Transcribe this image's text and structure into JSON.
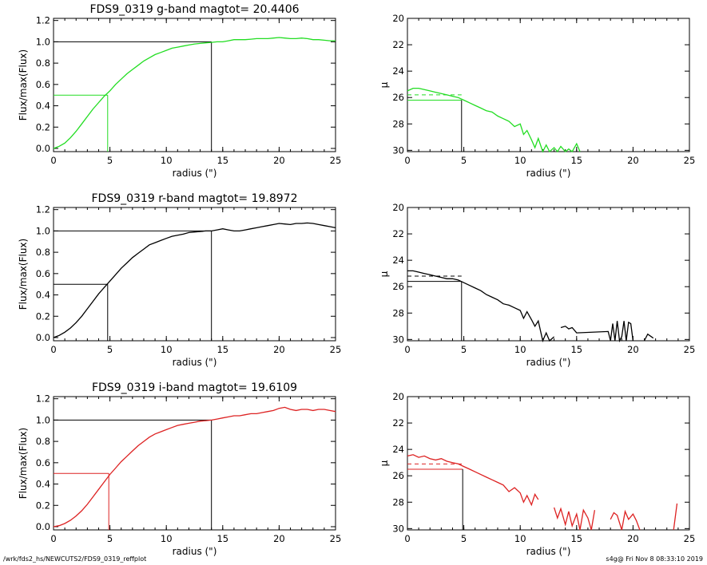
{
  "chart_data": [
    {
      "type": "line",
      "panel": "g-band growth curve",
      "title": "FDS9_0319 g-band  magtot=     20.4406",
      "xlabel": "radius (\")",
      "ylabel": "Flux/max(Flux)",
      "xlim": [
        0,
        25
      ],
      "ylim": [
        -0.03,
        1.22
      ],
      "xticks": [
        "0",
        "5",
        "10",
        "15",
        "20",
        "25"
      ],
      "yticks": [
        "0.0",
        "0.2",
        "0.4",
        "0.6",
        "0.8",
        "1.0",
        "1.2"
      ],
      "color": "#22dd22",
      "half_radius": 4.8,
      "total_radius": 14.0,
      "series": [
        {
          "x": [
            0,
            0.5,
            1,
            1.5,
            2,
            2.5,
            3,
            3.5,
            4,
            4.5,
            5,
            5.5,
            6,
            6.5,
            7,
            7.5,
            8,
            8.5,
            9,
            9.5,
            10,
            10.5,
            11,
            11.5,
            12,
            12.5,
            13,
            13.5,
            14,
            14.5,
            15,
            15.5,
            16,
            16.5,
            17,
            17.5,
            18,
            18.5,
            19,
            19.5,
            20,
            20.5,
            21,
            21.5,
            22,
            22.5,
            23,
            23.5,
            24,
            24.5,
            25
          ],
          "y": [
            0.0,
            0.02,
            0.05,
            0.1,
            0.16,
            0.23,
            0.3,
            0.37,
            0.43,
            0.49,
            0.54,
            0.6,
            0.65,
            0.7,
            0.74,
            0.78,
            0.82,
            0.85,
            0.88,
            0.9,
            0.92,
            0.94,
            0.95,
            0.96,
            0.97,
            0.98,
            0.985,
            0.99,
            0.995,
            1.0,
            1.0,
            1.01,
            1.02,
            1.02,
            1.02,
            1.025,
            1.03,
            1.03,
            1.03,
            1.035,
            1.04,
            1.035,
            1.03,
            1.03,
            1.035,
            1.03,
            1.02,
            1.02,
            1.015,
            1.01,
            1.01
          ]
        }
      ]
    },
    {
      "type": "line",
      "panel": "g-band surface brightness profile",
      "title": "",
      "xlabel": "radius (\")",
      "ylabel": "μ",
      "xlim": [
        0,
        25
      ],
      "ylim": [
        30.1,
        20
      ],
      "xticks": [
        "0",
        "5",
        "10",
        "15",
        "20",
        "25"
      ],
      "yticks": [
        "20",
        "22",
        "24",
        "26",
        "28",
        "30"
      ],
      "color": "#22dd22",
      "half_radius": 4.8,
      "mu_eff": 26.2,
      "mu_mean": 25.8,
      "series": [
        {
          "x": [
            0,
            0.5,
            1,
            1.5,
            2,
            2.5,
            3,
            3.5,
            4,
            4.5,
            5,
            5.5,
            6,
            6.5,
            7,
            7.5,
            8,
            8.5,
            9,
            9.5,
            10,
            10.3,
            10.6,
            11,
            11.3,
            11.6,
            12,
            12.3,
            12.6,
            13,
            13.3,
            13.6,
            14,
            14.3,
            14.6,
            15,
            15.3
          ],
          "y": [
            25.5,
            25.3,
            25.3,
            25.4,
            25.5,
            25.6,
            25.7,
            25.8,
            25.9,
            26.0,
            26.2,
            26.4,
            26.6,
            26.8,
            27.0,
            27.1,
            27.4,
            27.6,
            27.8,
            28.2,
            28.0,
            28.8,
            28.5,
            29.2,
            29.8,
            29.1,
            30.1,
            29.6,
            30.1,
            29.8,
            30.1,
            29.7,
            30.1,
            29.9,
            30.1,
            29.5,
            30.1
          ]
        }
      ]
    },
    {
      "type": "line",
      "panel": "r-band growth curve",
      "title": "FDS9_0319 r-band  magtot=     19.8972",
      "xlabel": "radius (\")",
      "ylabel": "Flux/max(Flux)",
      "xlim": [
        0,
        25
      ],
      "ylim": [
        -0.03,
        1.22
      ],
      "xticks": [
        "0",
        "5",
        "10",
        "15",
        "20",
        "25"
      ],
      "yticks": [
        "0.0",
        "0.2",
        "0.4",
        "0.6",
        "0.8",
        "1.0",
        "1.2"
      ],
      "color": "#000000",
      "half_radius": 4.8,
      "total_radius": 14.0,
      "series": [
        {
          "x": [
            0,
            0.5,
            1,
            1.5,
            2,
            2.5,
            3,
            3.5,
            4,
            4.5,
            5,
            5.5,
            6,
            6.5,
            7,
            7.5,
            8,
            8.5,
            9,
            9.5,
            10,
            10.5,
            11,
            11.5,
            12,
            12.5,
            13,
            13.5,
            14,
            14.5,
            15,
            15.5,
            16,
            16.5,
            17,
            17.5,
            18,
            18.5,
            19,
            19.5,
            20,
            20.5,
            21,
            21.5,
            22,
            22.5,
            23,
            23.5,
            24,
            24.5,
            25
          ],
          "y": [
            0.0,
            0.02,
            0.05,
            0.09,
            0.14,
            0.2,
            0.27,
            0.34,
            0.41,
            0.47,
            0.53,
            0.59,
            0.65,
            0.7,
            0.75,
            0.79,
            0.83,
            0.87,
            0.89,
            0.91,
            0.93,
            0.95,
            0.96,
            0.97,
            0.985,
            0.99,
            0.995,
            1.0,
            1.0,
            1.01,
            1.02,
            1.01,
            1.0,
            1.0,
            1.01,
            1.02,
            1.03,
            1.04,
            1.05,
            1.06,
            1.07,
            1.065,
            1.06,
            1.07,
            1.07,
            1.075,
            1.07,
            1.06,
            1.05,
            1.04,
            1.03
          ]
        }
      ]
    },
    {
      "type": "line",
      "panel": "r-band surface brightness profile",
      "title": "",
      "xlabel": "radius (\")",
      "ylabel": "μ",
      "xlim": [
        0,
        25
      ],
      "ylim": [
        30.1,
        20
      ],
      "xticks": [
        "0",
        "5",
        "10",
        "15",
        "20",
        "25"
      ],
      "yticks": [
        "20",
        "22",
        "24",
        "26",
        "28",
        "30"
      ],
      "color": "#000000",
      "half_radius": 4.8,
      "mu_eff": 25.6,
      "mu_mean": 25.2,
      "series": [
        {
          "x": [
            0,
            0.5,
            1,
            1.5,
            2,
            2.5,
            3,
            3.5,
            4,
            4.5,
            5,
            5.5,
            6,
            6.5,
            7,
            7.5,
            8,
            8.5,
            9,
            9.5,
            10,
            10.3,
            10.6,
            11,
            11.3,
            11.6,
            12,
            12.3,
            12.6,
            13,
            13.3,
            13.6,
            14,
            14.3,
            14.6,
            15,
            17.8,
            18,
            18.2,
            18.4,
            18.6,
            18.8,
            19,
            19.2,
            19.4,
            19.6,
            19.8,
            20,
            20.2,
            20.4,
            21,
            21.3,
            21.8,
            22
          ],
          "y": [
            24.8,
            24.8,
            24.9,
            25.0,
            25.1,
            25.2,
            25.3,
            25.4,
            25.4,
            25.5,
            25.7,
            25.9,
            26.1,
            26.3,
            26.6,
            26.8,
            27.0,
            27.3,
            27.4,
            27.6,
            27.8,
            28.4,
            27.9,
            28.5,
            29.0,
            28.6,
            30.1,
            29.5,
            30.1,
            29.8,
            null,
            29.1,
            29.0,
            29.2,
            29.1,
            29.5,
            29.4,
            30.1,
            28.8,
            30.1,
            28.6,
            30.1,
            29.8,
            28.6,
            30.1,
            28.7,
            28.8,
            30.1,
            null,
            null,
            30.1,
            29.6,
            29.9,
            null
          ]
        }
      ]
    },
    {
      "type": "line",
      "panel": "i-band growth curve",
      "title": "FDS9_0319 i-band  magtot=     19.6109",
      "xlabel": "radius (\")",
      "ylabel": "Flux/max(Flux)",
      "xlim": [
        0,
        25
      ],
      "ylim": [
        -0.03,
        1.22
      ],
      "xticks": [
        "0",
        "5",
        "10",
        "15",
        "20",
        "25"
      ],
      "yticks": [
        "0.0",
        "0.2",
        "0.4",
        "0.6",
        "0.8",
        "1.0",
        "1.2"
      ],
      "color": "#dd2222",
      "half_radius": 4.9,
      "total_radius": 14.0,
      "series": [
        {
          "x": [
            0,
            0.5,
            1,
            1.5,
            2,
            2.5,
            3,
            3.5,
            4,
            4.5,
            5,
            5.5,
            6,
            6.5,
            7,
            7.5,
            8,
            8.5,
            9,
            9.5,
            10,
            10.5,
            11,
            11.5,
            12,
            12.5,
            13,
            13.5,
            14,
            14.5,
            15,
            15.5,
            16,
            16.5,
            17,
            17.5,
            18,
            18.5,
            19,
            19.5,
            20,
            20.5,
            21,
            21.5,
            22,
            22.5,
            23,
            23.5,
            24,
            24.5,
            25
          ],
          "y": [
            0.0,
            0.01,
            0.03,
            0.06,
            0.1,
            0.15,
            0.21,
            0.28,
            0.35,
            0.42,
            0.49,
            0.55,
            0.61,
            0.66,
            0.71,
            0.76,
            0.8,
            0.84,
            0.87,
            0.89,
            0.91,
            0.93,
            0.95,
            0.96,
            0.97,
            0.98,
            0.99,
            0.995,
            1.0,
            1.01,
            1.02,
            1.03,
            1.04,
            1.04,
            1.05,
            1.06,
            1.06,
            1.07,
            1.08,
            1.09,
            1.11,
            1.12,
            1.1,
            1.09,
            1.1,
            1.1,
            1.09,
            1.1,
            1.1,
            1.09,
            1.08
          ]
        }
      ]
    },
    {
      "type": "line",
      "panel": "i-band surface brightness profile",
      "title": "",
      "xlabel": "radius (\")",
      "ylabel": "μ",
      "xlim": [
        0,
        25
      ],
      "ylim": [
        30.1,
        20
      ],
      "xticks": [
        "0",
        "5",
        "10",
        "15",
        "20",
        "25"
      ],
      "yticks": [
        "20",
        "22",
        "24",
        "26",
        "28",
        "30"
      ],
      "color": "#dd2222",
      "half_radius": 4.9,
      "mu_eff": 25.5,
      "mu_mean": 25.1,
      "series": [
        {
          "x": [
            0,
            0.5,
            1,
            1.5,
            2,
            2.5,
            3,
            3.5,
            4,
            4.5,
            5,
            5.5,
            6,
            6.5,
            7,
            7.5,
            8,
            8.5,
            9,
            9.5,
            10,
            10.3,
            10.6,
            11,
            11.3,
            11.6,
            null,
            13.0,
            13.3,
            13.6,
            14,
            14.3,
            14.6,
            15,
            15.3,
            15.6,
            16,
            16.3,
            16.6,
            null,
            18,
            18.3,
            18.6,
            19,
            19.3,
            19.6,
            20,
            20.3,
            20.6,
            null,
            23.6,
            23.9
          ],
          "y": [
            24.5,
            24.4,
            24.6,
            24.5,
            24.7,
            24.8,
            24.7,
            24.9,
            25.0,
            25.1,
            25.3,
            25.5,
            25.7,
            25.9,
            26.1,
            26.3,
            26.5,
            26.7,
            27.2,
            26.9,
            27.3,
            28.0,
            27.5,
            28.2,
            27.4,
            27.8,
            null,
            28.4,
            29.2,
            28.5,
            29.7,
            28.7,
            29.8,
            28.9,
            30.1,
            28.6,
            29.2,
            30.1,
            28.6,
            null,
            29.3,
            28.8,
            29.0,
            30.1,
            28.7,
            29.3,
            28.9,
            29.4,
            30.1,
            null,
            30.1,
            28.1
          ]
        }
      ]
    }
  ],
  "footer": {
    "left": "/wrk/fds2_hs/NEWCUTS2/FDS9_0319_reffplot",
    "right": "s4g@  Fri Nov  8 08:33:10 2019"
  }
}
